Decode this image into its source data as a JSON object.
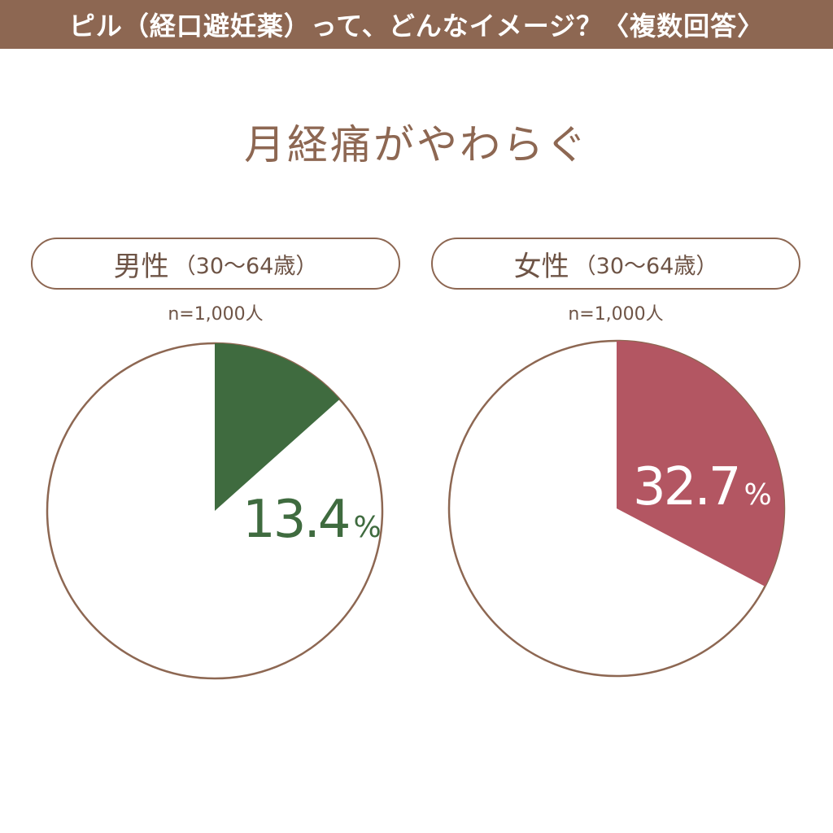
{
  "header": {
    "title": "ピル（経口避妊薬）って、どんなイメージ？〈複数回答〉"
  },
  "subtitle": "月経痛がやわらぐ",
  "groups": [
    {
      "label": "男性",
      "age": "（30〜64歳）",
      "n": "n=1,000人"
    },
    {
      "label": "女性",
      "age": "（30〜64歳）",
      "n": "n=1,000人"
    }
  ],
  "chart_data": [
    {
      "type": "pie",
      "categories": [
        "月経痛がやわらぐ"
      ],
      "values": [
        13.4
      ],
      "value_labels": [
        "13.4%"
      ],
      "color": "#3f6b3f",
      "label_color": "#3f6b3f",
      "outline": "#8d6752"
    },
    {
      "type": "pie",
      "categories": [
        "月経痛がやわらぐ"
      ],
      "values": [
        32.7
      ],
      "value_labels": [
        "32.7%"
      ],
      "color": "#b35662",
      "label_color": "#ffffff",
      "outline": "#8d6752"
    }
  ]
}
